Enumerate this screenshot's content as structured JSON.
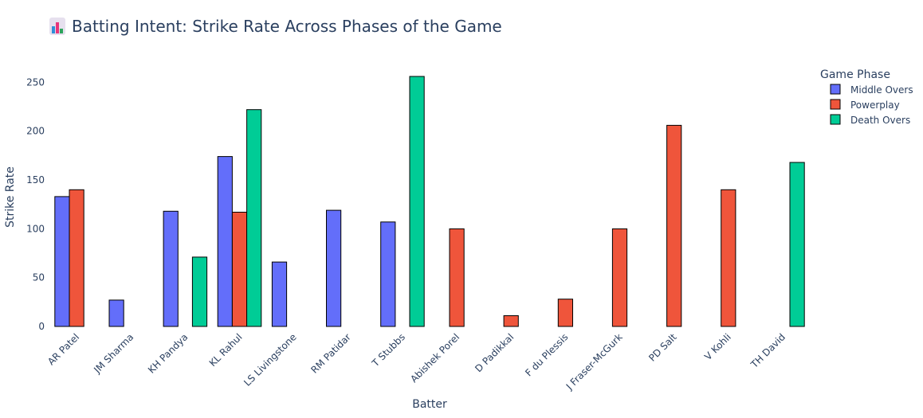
{
  "chart_data": {
    "type": "bar",
    "title": "Batting Intent: Strike Rate Across Phases of the Game",
    "title_icon": "bar-chart-emoji",
    "xlabel": "Batter",
    "ylabel": "Strike Rate",
    "ylim": [
      0,
      265
    ],
    "yticks": [
      0,
      50,
      100,
      150,
      200,
      250
    ],
    "grid": false,
    "legend_title": "Game Phase",
    "legend_position": "top-right",
    "categories": [
      "AR Patel",
      "JM Sharma",
      "KH Pandya",
      "KL Rahul",
      "LS Livingstone",
      "RM Patidar",
      "T Stubbs",
      "Abishek Porel",
      "D Padikkal",
      "F du Plessis",
      "J Fraser-McGurk",
      "PD Salt",
      "V Kohli",
      "TH David"
    ],
    "series": [
      {
        "name": "Middle Overs",
        "color": "#636efa",
        "values": [
          133,
          27,
          118,
          174,
          66,
          119,
          107,
          null,
          null,
          null,
          null,
          null,
          null,
          null
        ]
      },
      {
        "name": "Powerplay",
        "color": "#ef553b",
        "values": [
          140,
          null,
          null,
          117,
          null,
          null,
          null,
          100,
          11,
          28,
          100,
          206,
          140,
          null
        ]
      },
      {
        "name": "Death Overs",
        "color": "#00cc96",
        "values": [
          null,
          null,
          71,
          222,
          null,
          null,
          256,
          null,
          null,
          null,
          null,
          null,
          null,
          168
        ]
      }
    ]
  }
}
